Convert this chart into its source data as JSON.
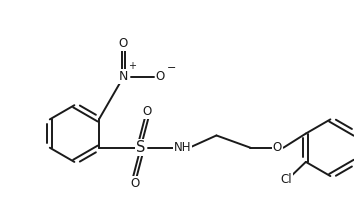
{
  "bg_color": "#ffffff",
  "line_color": "#1a1a1a",
  "lw": 1.4,
  "figsize": [
    3.55,
    2.18
  ],
  "dpi": 100,
  "xlim": [
    0.0,
    7.2
  ],
  "ylim": [
    -1.2,
    3.2
  ]
}
